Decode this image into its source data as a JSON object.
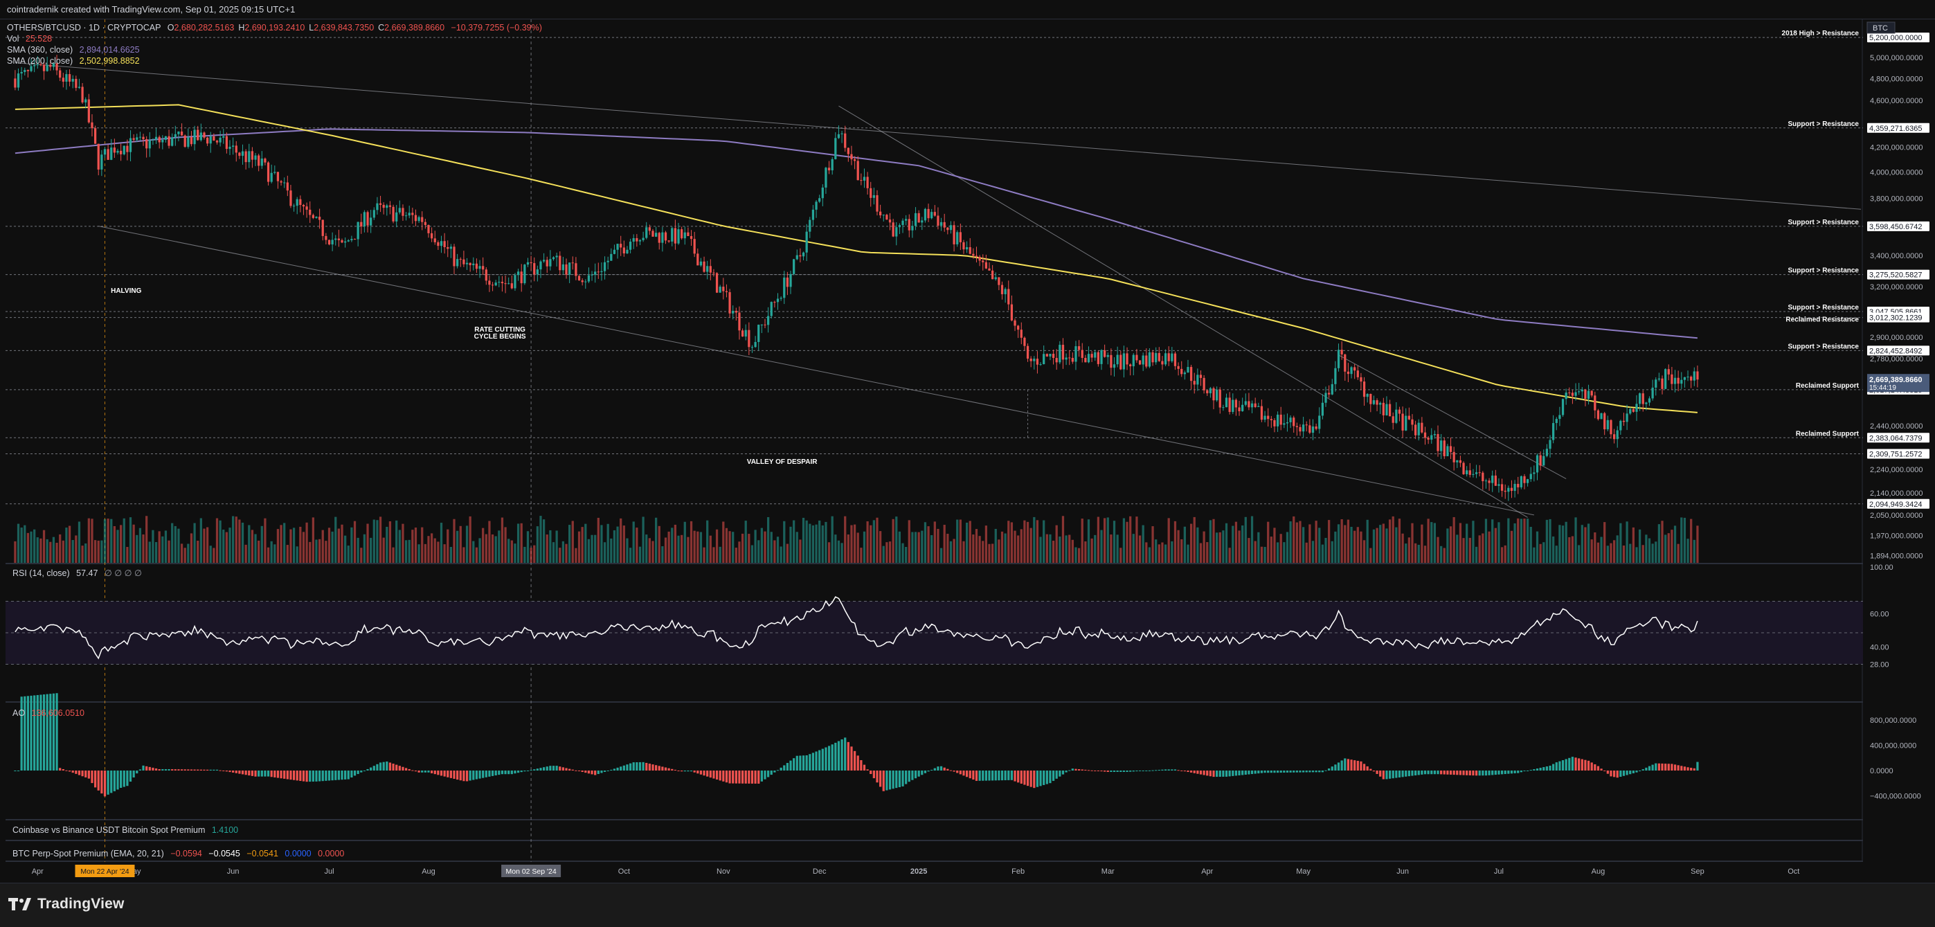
{
  "header": {
    "title": "cointradernik created with TradingView.com, Sep 01, 2025 09:15 UTC+1"
  },
  "legend": {
    "symbol": "OTHERS/BTCUSD · 1D · CRYPTOCAP",
    "ohlc": [
      {
        "k": "O",
        "v": "2,680,282.5163"
      },
      {
        "k": "H",
        "v": "2,690,193.2410"
      },
      {
        "k": "L",
        "v": "2,639,843.7350"
      },
      {
        "k": "C",
        "v": "2,669,389.8660"
      }
    ],
    "change": "−10,379.7255 (−0.39%)",
    "vol_label": "Vol",
    "vol_value": "25.528",
    "sma360_label": "SMA (360, close)",
    "sma360_value": "2,894,014.6625",
    "sma200_label": "SMA (200, close)",
    "sma200_value": "2,502,998.8852",
    "rsi_label": "RSI (14, close)",
    "rsi_value": "57.47",
    "rsi_extra": "∅ ∅ ∅ ∅",
    "ao_label": "AO",
    "ao_value": "136,606.0510",
    "cb_label": "Coinbase vs Binance USDT Bitcoin Spot Premium",
    "cb_value": "1.4100",
    "perp_label": "BTC Perp-Spot Premium (EMA, 20, 21)",
    "perp_values": [
      "−0.0594",
      "−0.0545",
      "−0.0541",
      "0.0000",
      "0.0000"
    ]
  },
  "footer": {
    "brand": "TradingView"
  },
  "colors": {
    "background": "#0f0f0f",
    "bull": "#26a69a",
    "bear": "#ef5350",
    "sma200": "#f5e15a",
    "sma360": "#8e7cc3",
    "rsi_line": "#ffffff",
    "rsi_band": "#1a1526",
    "price_tag": "#4a5b7a"
  },
  "chart_data": [
    {
      "type": "candlestick",
      "title": "OTHERS/BTCUSD · 1D · CRYPTOCAP",
      "x_ticks": [
        "Apr",
        "May",
        "Jun",
        "Jul",
        "Aug",
        "Sep",
        "Oct",
        "Nov",
        "Dec",
        "2025",
        "Feb",
        "Mar",
        "Apr",
        "May",
        "Jun",
        "Jul",
        "Aug",
        "Sep",
        "Oct"
      ],
      "x_markers": [
        "Mon 22 Apr '24",
        "Mon 02 Sep '24"
      ],
      "y_ticks": [
        "5,000,000.0000",
        "4,800,000.0000",
        "4,600,000.0000",
        "4,200,000.0000",
        "4,000,000.0000",
        "3,800,000.0000",
        "3,400,000.0000",
        "3,200,000.0000",
        "2,900,000.0000",
        "2,780,000.0000",
        "2,440,000.0000",
        "2,240,000.0000",
        "2,140,000.0000",
        "2,050,000.0000",
        "1,970,000.0000",
        "1,894,000.0000"
      ],
      "ylim": [
        1894000,
        5200000
      ],
      "log_scale": true,
      "price_path": [
        {
          "x": "2024-03-25",
          "y": 4800000
        },
        {
          "x": "2024-04-05",
          "y": 4900000
        },
        {
          "x": "2024-04-15",
          "y": 4650000
        },
        {
          "x": "2024-04-20",
          "y": 4080000
        },
        {
          "x": "2024-04-25",
          "y": 4200000
        },
        {
          "x": "2024-05-10",
          "y": 4250000
        },
        {
          "x": "2024-05-25",
          "y": 4280000
        },
        {
          "x": "2024-06-10",
          "y": 4050000
        },
        {
          "x": "2024-06-25",
          "y": 3650000
        },
        {
          "x": "2024-07-05",
          "y": 3450000
        },
        {
          "x": "2024-07-15",
          "y": 3720000
        },
        {
          "x": "2024-07-30",
          "y": 3650000
        },
        {
          "x": "2024-08-10",
          "y": 3350000
        },
        {
          "x": "2024-08-25",
          "y": 3220000
        },
        {
          "x": "2024-09-08",
          "y": 3380000
        },
        {
          "x": "2024-09-20",
          "y": 3250000
        },
        {
          "x": "2024-10-05",
          "y": 3550000
        },
        {
          "x": "2024-10-20",
          "y": 3520000
        },
        {
          "x": "2024-11-01",
          "y": 3150000
        },
        {
          "x": "2024-11-10",
          "y": 2860000
        },
        {
          "x": "2024-11-25",
          "y": 3400000
        },
        {
          "x": "2024-12-03",
          "y": 4000000
        },
        {
          "x": "2024-12-07",
          "y": 4350000
        },
        {
          "x": "2024-12-15",
          "y": 3900000
        },
        {
          "x": "2024-12-25",
          "y": 3550000
        },
        {
          "x": "2025-01-05",
          "y": 3700000
        },
        {
          "x": "2025-01-15",
          "y": 3450000
        },
        {
          "x": "2025-01-28",
          "y": 3150000
        },
        {
          "x": "2025-02-04",
          "y": 2760000
        },
        {
          "x": "2025-02-15",
          "y": 2820000
        },
        {
          "x": "2025-03-05",
          "y": 2760000
        },
        {
          "x": "2025-03-20",
          "y": 2800000
        },
        {
          "x": "2025-04-05",
          "y": 2560000
        },
        {
          "x": "2025-04-20",
          "y": 2480000
        },
        {
          "x": "2025-05-05",
          "y": 2420000
        },
        {
          "x": "2025-05-12",
          "y": 2790000
        },
        {
          "x": "2025-05-25",
          "y": 2520000
        },
        {
          "x": "2025-06-10",
          "y": 2380000
        },
        {
          "x": "2025-06-25",
          "y": 2200000
        },
        {
          "x": "2025-07-05",
          "y": 2150000
        },
        {
          "x": "2025-07-15",
          "y": 2300000
        },
        {
          "x": "2025-07-22",
          "y": 2620000
        },
        {
          "x": "2025-07-30",
          "y": 2560000
        },
        {
          "x": "2025-08-05",
          "y": 2400000
        },
        {
          "x": "2025-08-15",
          "y": 2580000
        },
        {
          "x": "2025-08-22",
          "y": 2680000
        },
        {
          "x": "2025-09-01",
          "y": 2669390
        }
      ],
      "sma200_path": [
        {
          "x": "2024-03-25",
          "y": 4520000
        },
        {
          "x": "2024-05-15",
          "y": 4560000
        },
        {
          "x": "2024-07-01",
          "y": 4300000
        },
        {
          "x": "2024-09-01",
          "y": 3950000
        },
        {
          "x": "2024-11-01",
          "y": 3600000
        },
        {
          "x": "2024-12-15",
          "y": 3420000
        },
        {
          "x": "2025-01-15",
          "y": 3400000
        },
        {
          "x": "2025-03-01",
          "y": 3250000
        },
        {
          "x": "2025-05-01",
          "y": 2950000
        },
        {
          "x": "2025-07-01",
          "y": 2640000
        },
        {
          "x": "2025-08-10",
          "y": 2530000
        },
        {
          "x": "2025-09-01",
          "y": 2503000
        }
      ],
      "sma360_path": [
        {
          "x": "2024-03-25",
          "y": 4150000
        },
        {
          "x": "2024-05-15",
          "y": 4280000
        },
        {
          "x": "2024-07-01",
          "y": 4350000
        },
        {
          "x": "2024-09-01",
          "y": 4320000
        },
        {
          "x": "2024-11-01",
          "y": 4250000
        },
        {
          "x": "2025-01-01",
          "y": 4050000
        },
        {
          "x": "2025-03-01",
          "y": 3650000
        },
        {
          "x": "2025-05-01",
          "y": 3250000
        },
        {
          "x": "2025-07-01",
          "y": 3000000
        },
        {
          "x": "2025-09-01",
          "y": 2894000
        }
      ],
      "horizontal_levels": [
        {
          "y": 5200000,
          "label": "2018 High > Resistance",
          "price_label": "5,200,000.0000"
        },
        {
          "y": 4359271.6365,
          "label": "Support > Resistance",
          "price_label": "4,359,271.6365"
        },
        {
          "y": 3598450.6742,
          "label": "Support > Resistance",
          "price_label": "3,598,450.6742"
        },
        {
          "y": 3275520.5827,
          "label": "Support > Resistance",
          "price_label": "3,275,520.5827"
        },
        {
          "y": 3047505.8661,
          "label": "Support > Resistance",
          "price_label": "3,047,505.8661"
        },
        {
          "y": 3012302.1239,
          "label": "Reclaimed Resistance",
          "price_label": "3,012,302.1239"
        },
        {
          "y": 2824452.8492,
          "label": "Support > Resistance",
          "price_label": "2,824,452.8492"
        },
        {
          "y": 2617147.8815,
          "label": "Reclaimed Support",
          "price_label": "2,617,147.8815"
        },
        {
          "y": 2383064.7379,
          "label": "Reclaimed Support",
          "price_label": "2,383,064.7379"
        },
        {
          "y": 2309751.2572,
          "label": "",
          "price_label": "2,309,751.2572"
        },
        {
          "y": 2094949.3424,
          "label": "",
          "price_label": "2,094,949.3424"
        }
      ],
      "current_price": {
        "value": 2669389.866,
        "label": "2,669,389.8660",
        "countdown": "15:44:19"
      },
      "annotations": [
        {
          "text": "HALVING",
          "x": "2024-04-20"
        },
        {
          "text": "RATE CUTTING",
          "text2": "CYCLE BEGINS",
          "x": "2024-09-02"
        },
        {
          "text": "VALLEY OF DESPAIR",
          "x": "2024-11-15"
        }
      ],
      "currency_tag": "BTC"
    },
    {
      "type": "line",
      "title": "RSI (14, close)",
      "y_ticks": [
        "100.00",
        "60.00",
        "40.00",
        "28.00"
      ],
      "bands": [
        30,
        70
      ],
      "last": 57.47
    },
    {
      "type": "bar",
      "title": "AO",
      "y_ticks": [
        "800,000.0000",
        "400,000.0000",
        "0.0000",
        "−400,000.0000"
      ],
      "last": 136606.051
    }
  ]
}
